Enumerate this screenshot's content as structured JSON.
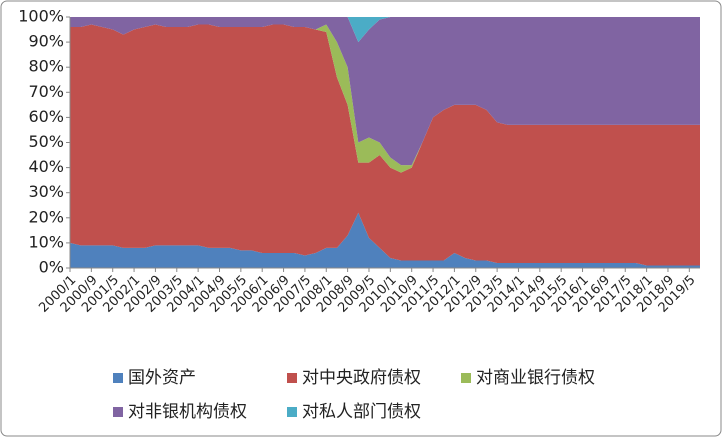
{
  "chart_data": {
    "type": "stacked_area",
    "categories": [
      "2000/1",
      null,
      "2000/9",
      null,
      "2001/5",
      null,
      "2002/1",
      null,
      "2002/9",
      null,
      "2003/5",
      null,
      "2004/1",
      null,
      "2004/9",
      null,
      "2005/5",
      null,
      "2006/1",
      null,
      "2006/9",
      null,
      "2007/5",
      null,
      "2008/1",
      null,
      "2008/9",
      null,
      "2009/5",
      null,
      "2010/1",
      null,
      "2010/9",
      null,
      "2011/5",
      null,
      "2012/1",
      null,
      "2012/9",
      null,
      "2013/5",
      null,
      "2014/1",
      null,
      "2014/9",
      null,
      "2015/5",
      null,
      "2016/1",
      null,
      "2016/9",
      null,
      "2017/5",
      null,
      "2018/1",
      null,
      "2018/9",
      null,
      "2019/5",
      null
    ],
    "series": [
      {
        "name": "国外资产",
        "color": "#4f81bd",
        "values": [
          10,
          9,
          9,
          9,
          9,
          8,
          8,
          8,
          9,
          9,
          9,
          9,
          9,
          8,
          8,
          8,
          7,
          7,
          6,
          6,
          6,
          6,
          5,
          6,
          8,
          8,
          13,
          22,
          12,
          8,
          4,
          3,
          3,
          3,
          3,
          3,
          6,
          4,
          3,
          3,
          2,
          2,
          2,
          2,
          2,
          2,
          2,
          2,
          2,
          2,
          2,
          2,
          2,
          2,
          1,
          1,
          1,
          1,
          1,
          1
        ]
      },
      {
        "name": "对中央政府债权",
        "color": "#c0504d",
        "values": [
          86,
          87,
          88,
          87,
          86,
          85,
          87,
          88,
          88,
          87,
          87,
          87,
          88,
          89,
          88,
          88,
          89,
          89,
          90,
          91,
          91,
          90,
          91,
          89,
          86,
          68,
          52,
          20,
          30,
          37,
          36,
          35,
          37,
          47,
          57,
          60,
          59,
          61,
          62,
          60,
          56,
          55,
          55,
          55,
          55,
          55,
          55,
          55,
          55,
          55,
          55,
          55,
          55,
          55,
          56,
          56,
          56,
          56,
          56,
          56
        ]
      },
      {
        "name": "对商业银行债权",
        "color": "#9bbb59",
        "values": [
          0,
          0,
          0,
          0,
          0,
          0,
          0,
          0,
          0,
          0,
          0,
          0,
          0,
          0,
          0,
          0,
          0,
          0,
          0,
          0,
          0,
          0,
          0,
          0,
          3,
          14,
          15,
          8,
          10,
          5,
          4,
          3,
          1,
          0,
          0,
          0,
          0,
          0,
          0,
          0,
          0,
          0,
          0,
          0,
          0,
          0,
          0,
          0,
          0,
          0,
          0,
          0,
          0,
          0,
          0,
          0,
          0,
          0,
          0,
          0
        ]
      },
      {
        "name": "对非银机构债权",
        "color": "#8064a2",
        "values": [
          4,
          4,
          3,
          4,
          5,
          7,
          5,
          4,
          3,
          4,
          4,
          4,
          3,
          3,
          4,
          4,
          4,
          4,
          4,
          3,
          3,
          4,
          4,
          5,
          3,
          10,
          20,
          40,
          43,
          49,
          56,
          59,
          59,
          50,
          40,
          37,
          35,
          35,
          35,
          37,
          42,
          43,
          43,
          43,
          43,
          43,
          43,
          43,
          43,
          43,
          43,
          43,
          43,
          43,
          43,
          43,
          43,
          43,
          43,
          43
        ]
      },
      {
        "name": "对私人部门债权",
        "color": "#4bacc6",
        "values": [
          0,
          0,
          0,
          0,
          0,
          0,
          0,
          0,
          0,
          0,
          0,
          0,
          0,
          0,
          0,
          0,
          0,
          0,
          0,
          0,
          0,
          0,
          0,
          0,
          0,
          0,
          0,
          10,
          5,
          1,
          0,
          0,
          0,
          0,
          0,
          0,
          0,
          0,
          0,
          0,
          0,
          0,
          0,
          0,
          0,
          0,
          0,
          0,
          0,
          0,
          0,
          0,
          0,
          0,
          0,
          0,
          0,
          0,
          0,
          0
        ]
      }
    ],
    "ylim": [
      0,
      100
    ],
    "yticks": [
      {
        "value": 0,
        "label": "0%"
      },
      {
        "value": 10,
        "label": "10%"
      },
      {
        "value": 20,
        "label": "20%"
      },
      {
        "value": 30,
        "label": "30%"
      },
      {
        "value": 40,
        "label": "40%"
      },
      {
        "value": 50,
        "label": "50%"
      },
      {
        "value": 60,
        "label": "60%"
      },
      {
        "value": 70,
        "label": "70%"
      },
      {
        "value": 80,
        "label": "80%"
      },
      {
        "value": 90,
        "label": "90%"
      },
      {
        "value": 100,
        "label": "100%"
      }
    ],
    "grid": false,
    "legend": "bottom"
  }
}
